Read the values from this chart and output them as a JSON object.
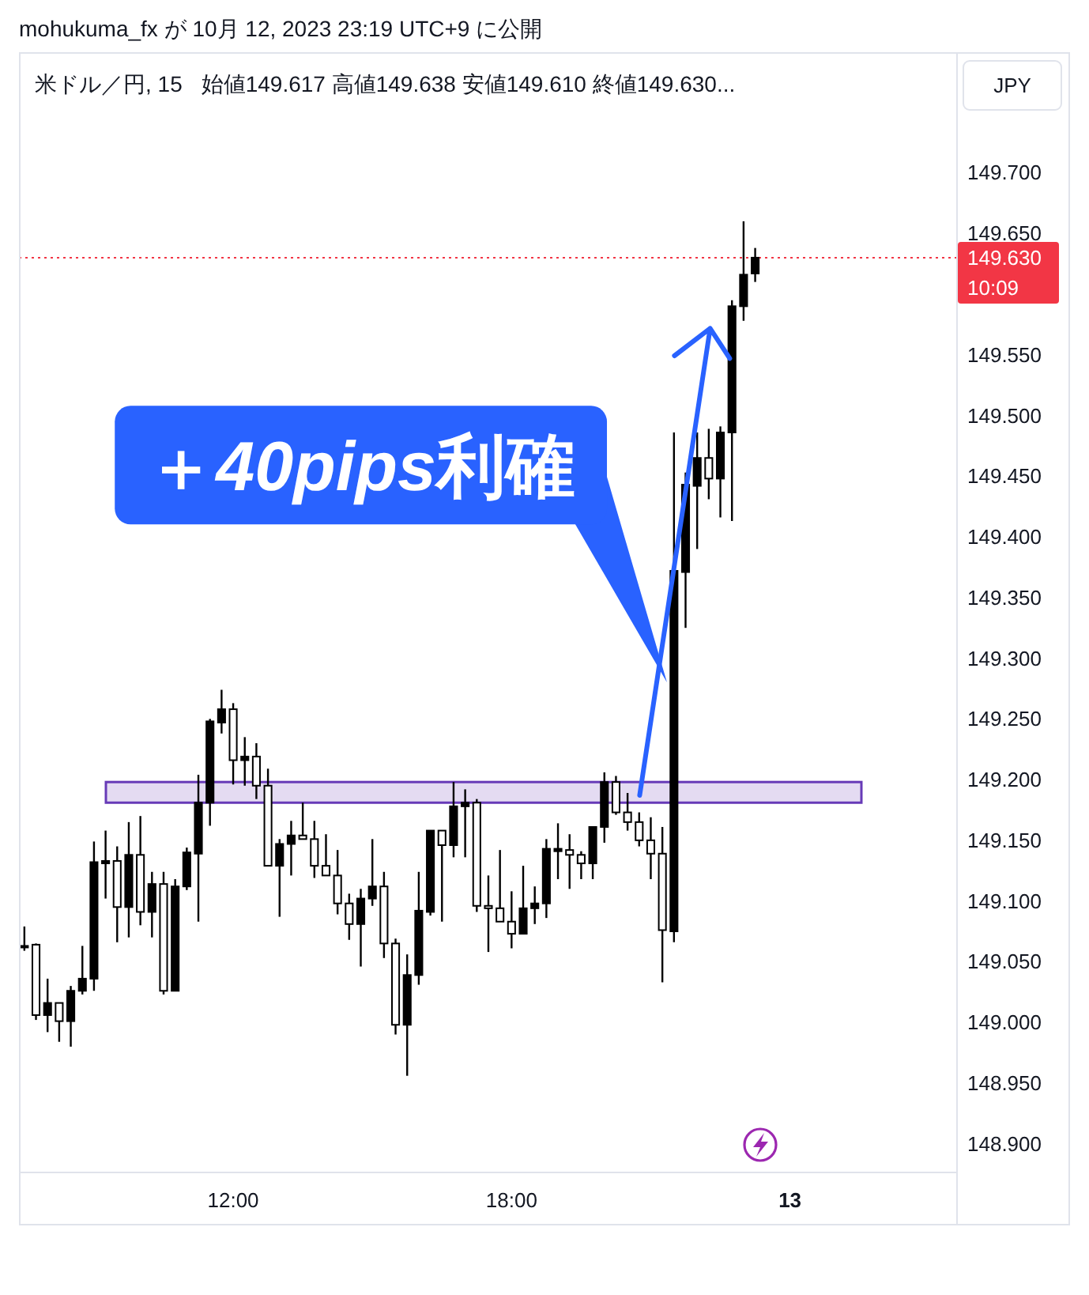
{
  "chart_data": {
    "type": "candlestick",
    "title": "米ドル／円, 15",
    "subtitle": "始値149.617 高値149.638 安値149.610 終値149.630...",
    "ylabel": "JPY",
    "annotations": [
      "mohukuma_fx が 10月 12, 2023 23:19 UTC+9 に公開",
      {
        "text": "＋40pips利確",
        "x": "2023-10-12T21:21",
        "y": 149.28
      }
    ],
    "x": [
      "2023-10-12T07:30",
      "2023-10-12T07:45",
      "2023-10-12T08:00",
      "2023-10-12T08:15",
      "2023-10-12T08:30",
      "2023-10-12T08:45",
      "2023-10-12T09:00",
      "2023-10-12T09:15",
      "2023-10-12T09:30",
      "2023-10-12T09:45",
      "2023-10-12T10:00",
      "2023-10-12T10:15",
      "2023-10-12T10:30",
      "2023-10-12T10:45",
      "2023-10-12T11:00",
      "2023-10-12T11:15",
      "2023-10-12T11:30",
      "2023-10-12T11:45",
      "2023-10-12T12:00",
      "2023-10-12T12:15",
      "2023-10-12T12:30",
      "2023-10-12T12:45",
      "2023-10-12T13:00",
      "2023-10-12T13:15",
      "2023-10-12T13:30",
      "2023-10-12T13:45",
      "2023-10-12T14:00",
      "2023-10-12T14:15",
      "2023-10-12T14:30",
      "2023-10-12T14:45",
      "2023-10-12T15:00",
      "2023-10-12T15:15",
      "2023-10-12T15:30",
      "2023-10-12T15:45",
      "2023-10-12T16:00",
      "2023-10-12T16:15",
      "2023-10-12T16:30",
      "2023-10-12T16:45",
      "2023-10-12T17:00",
      "2023-10-12T17:15",
      "2023-10-12T17:30",
      "2023-10-12T17:45",
      "2023-10-12T18:00",
      "2023-10-12T18:15",
      "2023-10-12T18:30",
      "2023-10-12T18:45",
      "2023-10-12T19:00",
      "2023-10-12T19:15",
      "2023-10-12T19:30",
      "2023-10-12T19:45",
      "2023-10-12T20:00",
      "2023-10-12T20:15",
      "2023-10-12T20:30",
      "2023-10-12T20:45",
      "2023-10-12T21:00",
      "2023-10-12T21:15",
      "2023-10-12T21:30",
      "2023-10-12T21:45",
      "2023-10-12T22:00",
      "2023-10-12T22:15",
      "2023-10-12T22:30",
      "2023-10-12T22:45",
      "2023-10-12T23:00",
      "2023-10-12T23:15"
    ],
    "ohlc": [
      [
        149.063,
        149.079,
        149.059,
        149.063
      ],
      [
        149.064,
        149.065,
        149.002,
        149.006
      ],
      [
        149.006,
        149.036,
        148.992,
        149.016
      ],
      [
        149.016,
        149.016,
        148.984,
        149.001
      ],
      [
        149.001,
        149.03,
        148.98,
        149.026
      ],
      [
        149.026,
        149.063,
        149.023,
        149.036
      ],
      [
        149.036,
        149.149,
        149.026,
        149.132
      ],
      [
        149.131,
        149.158,
        149.102,
        149.133
      ],
      [
        149.133,
        149.145,
        149.066,
        149.095
      ],
      [
        149.095,
        149.165,
        149.07,
        149.138
      ],
      [
        149.138,
        149.17,
        149.08,
        149.091
      ],
      [
        149.091,
        149.124,
        149.07,
        149.114
      ],
      [
        149.114,
        149.124,
        149.023,
        149.026
      ],
      [
        149.026,
        149.118,
        149.026,
        149.112
      ],
      [
        149.112,
        149.144,
        149.109,
        149.14
      ],
      [
        149.139,
        149.204,
        149.083,
        149.181
      ],
      [
        149.181,
        149.25,
        149.162,
        149.248
      ],
      [
        149.247,
        149.274,
        149.238,
        149.258
      ],
      [
        149.258,
        149.263,
        149.196,
        149.216
      ],
      [
        149.216,
        149.235,
        149.195,
        149.219
      ],
      [
        149.219,
        149.23,
        149.184,
        149.195
      ],
      [
        149.195,
        149.209,
        149.129,
        149.129
      ],
      [
        149.129,
        149.151,
        149.087,
        149.147
      ],
      [
        149.147,
        149.166,
        149.121,
        149.154
      ],
      [
        149.154,
        149.181,
        149.151,
        149.151
      ],
      [
        149.151,
        149.166,
        149.119,
        149.129
      ],
      [
        149.129,
        149.155,
        149.121,
        149.121
      ],
      [
        149.121,
        149.142,
        149.089,
        149.098
      ],
      [
        149.098,
        149.106,
        149.068,
        149.081
      ],
      [
        149.081,
        149.11,
        149.046,
        149.102
      ],
      [
        149.102,
        149.151,
        149.096,
        149.112
      ],
      [
        149.112,
        149.124,
        149.053,
        149.065
      ],
      [
        149.065,
        149.069,
        148.99,
        148.998
      ],
      [
        148.998,
        149.056,
        148.956,
        149.039
      ],
      [
        149.039,
        149.124,
        149.031,
        149.092
      ],
      [
        149.091,
        149.158,
        149.088,
        149.158
      ],
      [
        149.158,
        149.158,
        149.083,
        149.146
      ],
      [
        149.146,
        149.198,
        149.136,
        149.178
      ],
      [
        149.178,
        149.192,
        149.136,
        149.181
      ],
      [
        149.181,
        149.184,
        149.091,
        149.096
      ],
      [
        149.096,
        149.121,
        149.058,
        149.094
      ],
      [
        149.094,
        149.142,
        149.083,
        149.083
      ],
      [
        149.083,
        149.108,
        149.061,
        149.073
      ],
      [
        149.073,
        149.129,
        149.073,
        149.094
      ],
      [
        149.094,
        149.112,
        149.081,
        149.098
      ],
      [
        149.098,
        149.151,
        149.086,
        149.143
      ],
      [
        149.141,
        149.164,
        149.118,
        149.143
      ],
      [
        149.142,
        149.155,
        149.11,
        149.138
      ],
      [
        149.138,
        149.141,
        149.118,
        149.131
      ],
      [
        149.131,
        149.161,
        149.118,
        149.161
      ],
      [
        149.161,
        149.206,
        149.148,
        149.198
      ],
      [
        149.198,
        149.203,
        149.171,
        149.173
      ],
      [
        149.173,
        149.189,
        149.158,
        149.165
      ],
      [
        149.165,
        149.173,
        149.145,
        149.15
      ],
      [
        149.15,
        149.169,
        149.118,
        149.139
      ],
      [
        149.139,
        149.161,
        149.033,
        149.076
      ],
      [
        149.075,
        149.486,
        149.066,
        149.372
      ],
      [
        149.371,
        149.453,
        149.325,
        149.443
      ],
      [
        149.442,
        149.486,
        149.39,
        149.465
      ],
      [
        149.465,
        149.489,
        149.431,
        149.448
      ],
      [
        149.448,
        149.491,
        149.416,
        149.486
      ],
      [
        149.486,
        149.595,
        149.413,
        149.59
      ],
      [
        149.59,
        149.66,
        149.578,
        149.616
      ],
      [
        149.617,
        149.638,
        149.61,
        149.63
      ]
    ],
    "color": "#000000",
    "colors": [
      "#000000",
      "#ffffff",
      "#000000",
      "#ffffff",
      "#000000",
      "#000000",
      "#000000",
      "#000000",
      "#ffffff",
      "#000000",
      "#ffffff",
      "#000000",
      "#ffffff",
      "#000000",
      "#000000",
      "#000000",
      "#000000",
      "#000000",
      "#ffffff",
      "#000000",
      "#ffffff",
      "#ffffff",
      "#000000",
      "#000000",
      "#ffffff",
      "#ffffff",
      "#ffffff",
      "#ffffff",
      "#ffffff",
      "#000000",
      "#000000",
      "#ffffff",
      "#ffffff",
      "#000000",
      "#000000",
      "#000000",
      "#ffffff",
      "#000000",
      "#000000",
      "#ffffff",
      "#ffffff",
      "#ffffff",
      "#ffffff",
      "#000000",
      "#000000",
      "#000000",
      "#000000",
      "#ffffff",
      "#ffffff",
      "#000000",
      "#000000",
      "#ffffff",
      "#ffffff",
      "#ffffff",
      "#ffffff",
      "#ffffff",
      "#000000",
      "#000000",
      "#000000",
      "#ffffff",
      "#000000",
      "#000000",
      "#000000",
      "#000000"
    ],
    "xlim": [
      "2023-10-12T07:23",
      "2023-10-13T03:35"
    ],
    "xticks": [
      {
        "value": "2023-10-12T12:00",
        "label": "12:00"
      },
      {
        "value": "2023-10-12T18:00",
        "label": "18:00"
      },
      {
        "value": "2023-10-13T00:00",
        "label": "13"
      }
    ],
    "ylim": [
      148.877,
      149.798
    ],
    "yticks": [
      {
        "value": 148.9,
        "label": "148.900"
      },
      {
        "value": 148.95,
        "label": "148.950"
      },
      {
        "value": 149.0,
        "label": "149.000"
      },
      {
        "value": 149.05,
        "label": "149.050"
      },
      {
        "value": 149.1,
        "label": "149.100"
      },
      {
        "value": 149.15,
        "label": "149.150"
      },
      {
        "value": 149.2,
        "label": "149.200"
      },
      {
        "value": 149.25,
        "label": "149.250"
      },
      {
        "value": 149.3,
        "label": "149.300"
      },
      {
        "value": 149.35,
        "label": "149.350"
      },
      {
        "value": 149.4,
        "label": "149.400"
      },
      {
        "value": 149.45,
        "label": "149.450"
      },
      {
        "value": 149.5,
        "label": "149.500"
      },
      {
        "value": 149.55,
        "label": "149.550"
      },
      {
        "value": 149.65,
        "label": "149.650"
      },
      {
        "value": 149.7,
        "label": "149.700"
      }
    ],
    "ref_lines": [
      {
        "axis": "y",
        "value": 149.63,
        "label": "149.630\n10:09",
        "color": "#f23645",
        "line_style": "dotted"
      }
    ],
    "bands": [
      {
        "axis": "y",
        "from": 149.181,
        "to": 149.198,
        "color": "#673ab7"
      }
    ]
  }
}
